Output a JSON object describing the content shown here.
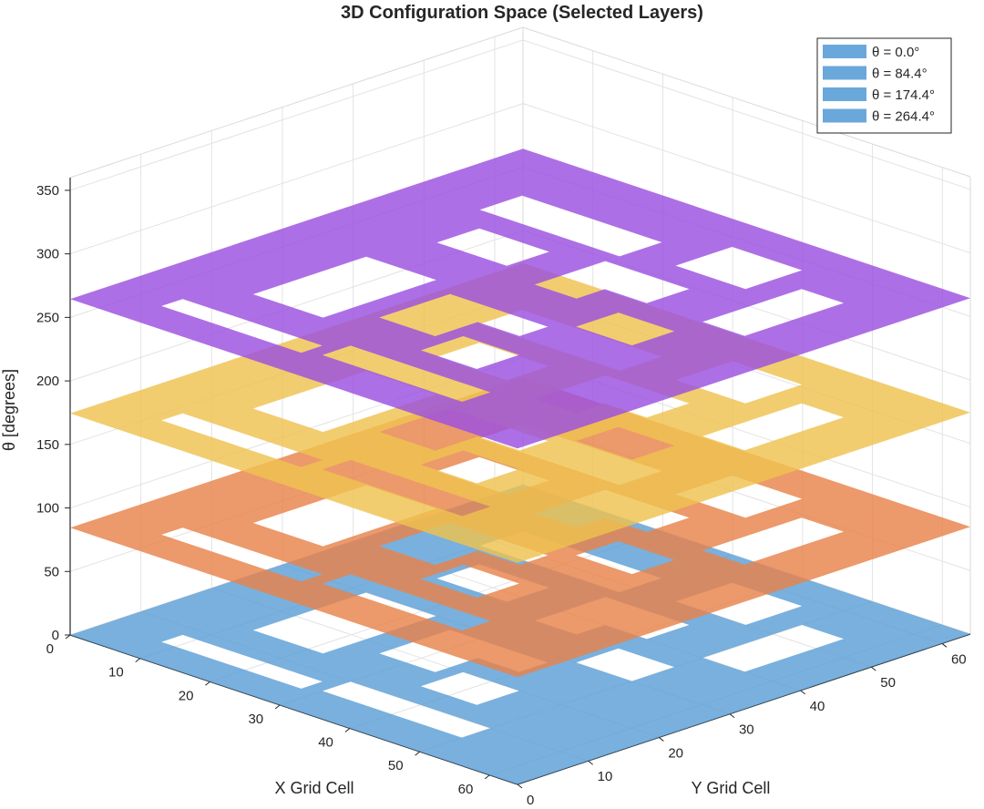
{
  "chart_data": {
    "type": "surface3d",
    "title": "3D Configuration Space (Selected Layers)",
    "xlabel": "X Grid Cell",
    "ylabel": "Y Grid Cell",
    "zlabel": "θ [degrees]",
    "xlim": [
      0,
      64
    ],
    "ylim": [
      0,
      64
    ],
    "zlim": [
      0,
      360
    ],
    "xticks": [
      0,
      10,
      20,
      30,
      40,
      50,
      60
    ],
    "yticks": [
      0,
      10,
      20,
      30,
      40,
      50,
      60
    ],
    "zticks": [
      0,
      50,
      100,
      150,
      200,
      250,
      300,
      350
    ],
    "grid": true,
    "legend_position": "top-right",
    "series": [
      {
        "name": "θ = 0.0°",
        "theta": 0.0,
        "color": "#5b9fd6"
      },
      {
        "name": "θ = 84.4°",
        "theta": 84.4,
        "color": "#e8824a"
      },
      {
        "name": "θ = 174.4°",
        "theta": 174.4,
        "color": "#efc24f"
      },
      {
        "name": "θ = 264.4°",
        "theta": 264.4,
        "color": "#9b4fe0"
      }
    ],
    "legend_color": "#6aa8db"
  }
}
